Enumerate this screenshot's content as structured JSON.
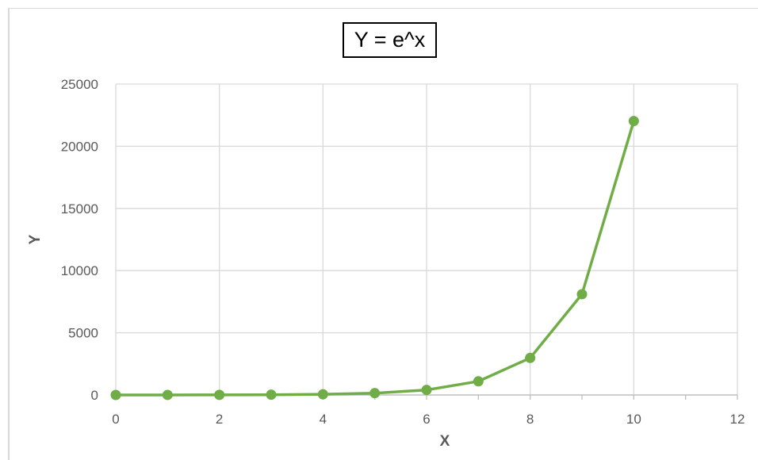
{
  "chart_data": {
    "type": "line",
    "title": "Y = e^x",
    "xlabel": "X",
    "ylabel": "Y",
    "xlim": [
      0,
      12
    ],
    "ylim": [
      0,
      25000
    ],
    "xticks": [
      "0",
      "2",
      "4",
      "6",
      "8",
      "10",
      "12"
    ],
    "yticks": [
      "0",
      "5000",
      "10000",
      "15000",
      "20000",
      "25000"
    ],
    "grid": true,
    "legend": "none",
    "series": [
      {
        "color": "#70ad47",
        "x": [
          0,
          1,
          2,
          3,
          4,
          5,
          6,
          7,
          8,
          9,
          10
        ],
        "y": [
          1,
          2.718,
          7.389,
          20.09,
          54.6,
          148.4,
          403.4,
          1096.6,
          2981,
          8103,
          22026
        ]
      }
    ]
  }
}
